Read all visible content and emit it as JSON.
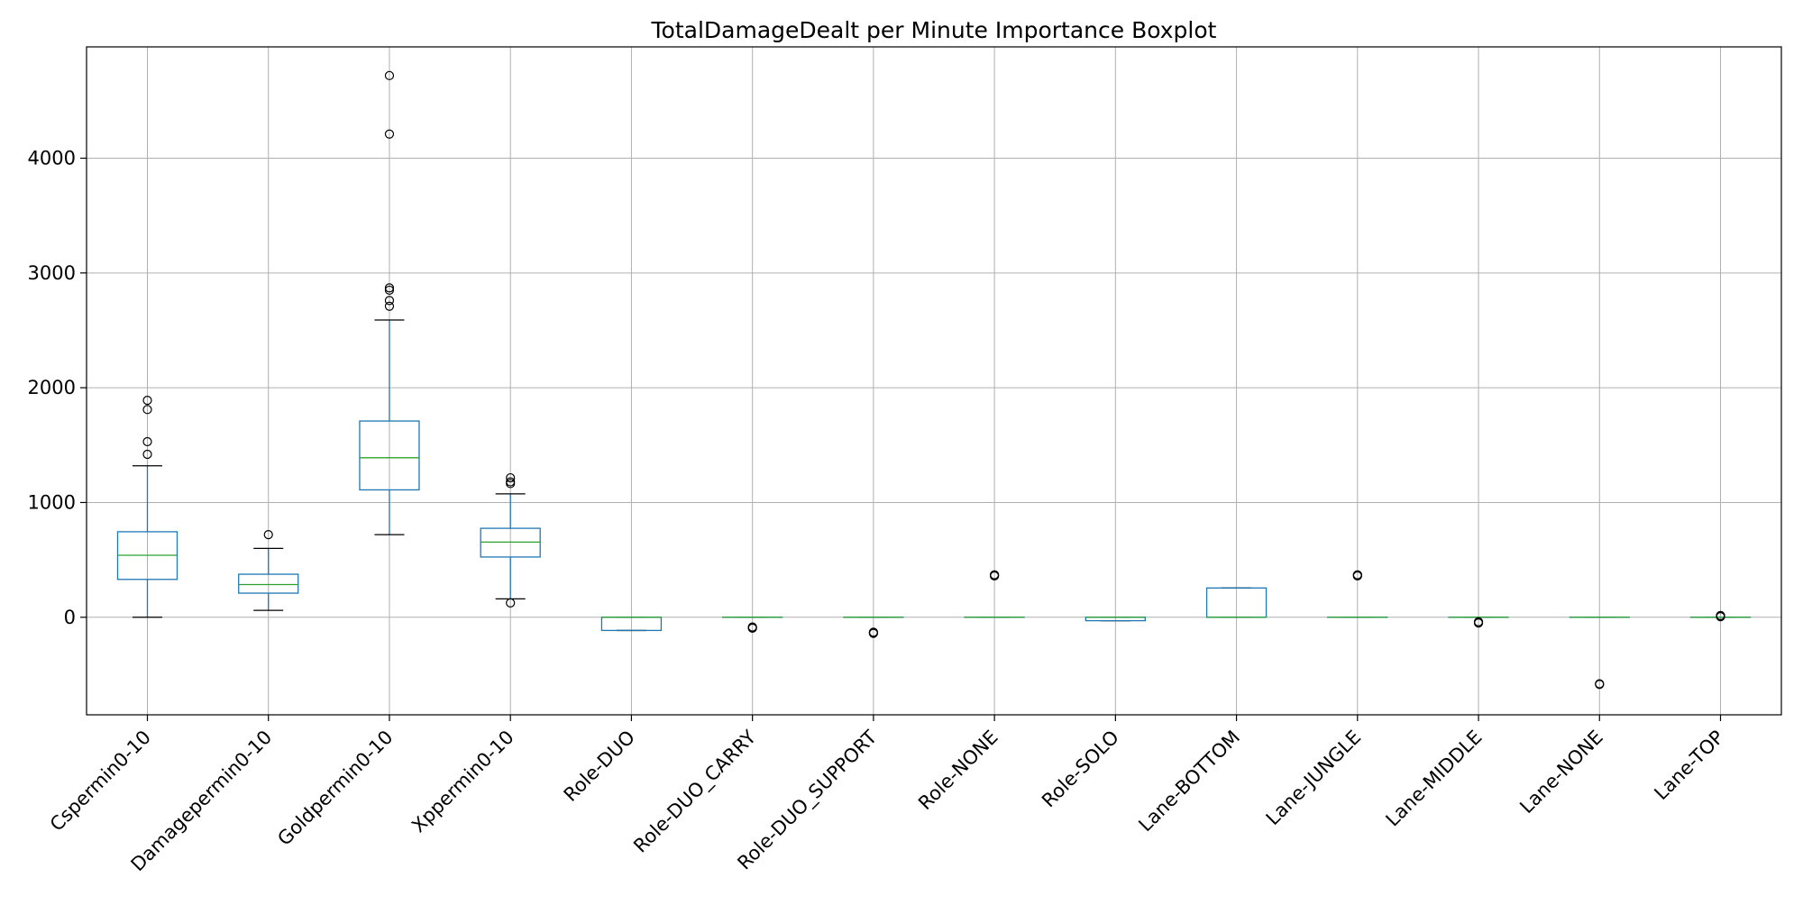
{
  "chart_data": {
    "type": "boxplot",
    "title": "TotalDamageDealt per Minute Importance Boxplot",
    "xlabel": "",
    "ylabel": "",
    "ylim": [
      -850,
      4970
    ],
    "yticks": [
      0,
      1000,
      2000,
      3000,
      4000
    ],
    "grid": true,
    "colors": {
      "box": "#1f77b4",
      "median": "#2ca02c",
      "whisker_cap": "#000000",
      "grid": "#b0b0b0",
      "flier": "#000000"
    },
    "categories": [
      "Cspermin0-10",
      "Damagepermin0-10",
      "Goldpermin0-10",
      "Xppermin0-10",
      "Role-DUO",
      "Role-DUO_CARRY",
      "Role-DUO_SUPPORT",
      "Role-NONE",
      "Role-SOLO",
      "Lane-BOTTOM",
      "Lane-JUNGLE",
      "Lane-MIDDLE",
      "Lane-NONE",
      "Lane-TOP"
    ],
    "boxes": [
      {
        "label": "Cspermin0-10",
        "whislo": 0,
        "q1": 330,
        "med": 540,
        "q3": 745,
        "whishi": 1320,
        "fliers": [
          1420,
          1530,
          1810,
          1890
        ]
      },
      {
        "label": "Damagepermin0-10",
        "whislo": 60,
        "q1": 210,
        "med": 285,
        "q3": 375,
        "whishi": 600,
        "fliers": [
          720
        ]
      },
      {
        "label": "Goldpermin0-10",
        "whislo": 720,
        "q1": 1110,
        "med": 1390,
        "q3": 1710,
        "whishi": 2590,
        "fliers": [
          2710,
          2760,
          2850,
          2870,
          4210,
          4720
        ]
      },
      {
        "label": "Xppermin0-10",
        "whislo": 160,
        "q1": 525,
        "med": 655,
        "q3": 775,
        "whishi": 1075,
        "fliers": [
          125,
          1165,
          1180,
          1215
        ]
      },
      {
        "label": "Role-DUO",
        "whislo": -115,
        "q1": -115,
        "med": 0,
        "q3": 0,
        "whishi": 0,
        "fliers": []
      },
      {
        "label": "Role-DUO_CARRY",
        "whislo": 0,
        "q1": 0,
        "med": 0,
        "q3": 0,
        "whishi": 0,
        "fliers": [
          -85,
          -90,
          -95
        ]
      },
      {
        "label": "Role-DUO_SUPPORT",
        "whislo": 0,
        "q1": 0,
        "med": 0,
        "q3": 0,
        "whishi": 0,
        "fliers": [
          -130,
          -135,
          -140
        ]
      },
      {
        "label": "Role-NONE",
        "whislo": 0,
        "q1": 0,
        "med": 0,
        "q3": 0,
        "whishi": 0,
        "fliers": [
          360,
          365,
          370
        ]
      },
      {
        "label": "Role-SOLO",
        "whislo": -30,
        "q1": -30,
        "med": 0,
        "q3": 0,
        "whishi": 0,
        "fliers": []
      },
      {
        "label": "Lane-BOTTOM",
        "whislo": 0,
        "q1": 0,
        "med": 0,
        "q3": 255,
        "whishi": 255,
        "fliers": []
      },
      {
        "label": "Lane-JUNGLE",
        "whislo": 0,
        "q1": 0,
        "med": 0,
        "q3": 0,
        "whishi": 0,
        "fliers": [
          360,
          365,
          370
        ]
      },
      {
        "label": "Lane-MIDDLE",
        "whislo": 0,
        "q1": 0,
        "med": 0,
        "q3": 0,
        "whishi": 0,
        "fliers": [
          -40,
          -45,
          -50
        ]
      },
      {
        "label": "Lane-NONE",
        "whislo": 0,
        "q1": 0,
        "med": 0,
        "q3": 0,
        "whishi": 0,
        "fliers": [
          -580,
          -585
        ]
      },
      {
        "label": "Lane-TOP",
        "whislo": 0,
        "q1": 0,
        "med": 0,
        "q3": 0,
        "whishi": 0,
        "fliers": [
          5,
          10,
          15
        ]
      }
    ]
  }
}
